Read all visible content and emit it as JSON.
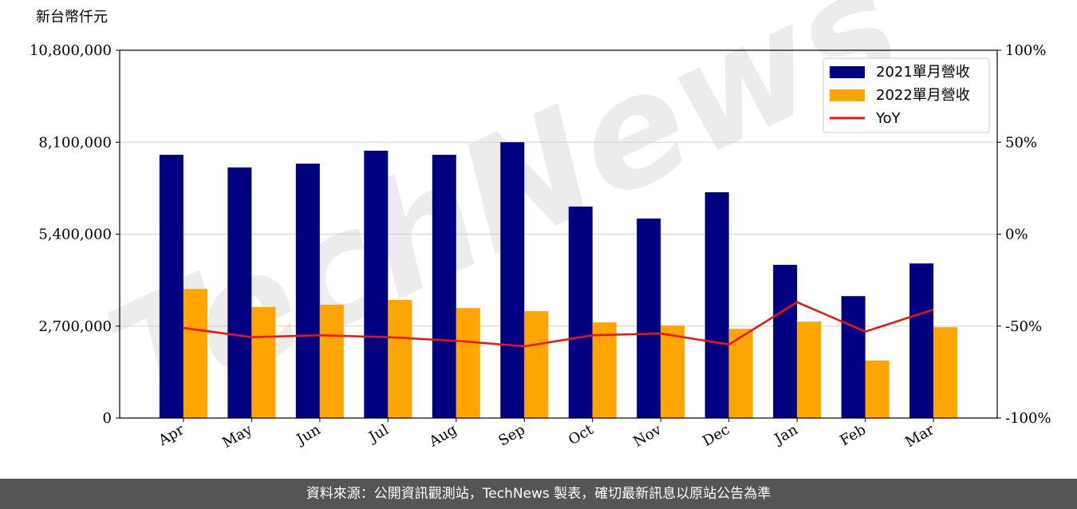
{
  "chart_data": {
    "type": "bar",
    "y_label": "新台幣仟元",
    "watermark": "TechNews",
    "categories": [
      "Apr",
      "May",
      "Jun",
      "Jul",
      "Aug",
      "Sep",
      "Oct",
      "Nov",
      "Dec",
      "Jan",
      "Feb",
      "Mar"
    ],
    "series": [
      {
        "name": "2021單月營收",
        "color": "#000080",
        "type": "bar",
        "values": [
          7730000,
          7360000,
          7470000,
          7850000,
          7730000,
          8100000,
          6210000,
          5860000,
          6630000,
          4500000,
          3580000,
          4540000
        ]
      },
      {
        "name": "2022單月營收",
        "color": "#ffa500",
        "type": "bar",
        "values": [
          3790000,
          3260000,
          3330000,
          3470000,
          3230000,
          3140000,
          2810000,
          2720000,
          2620000,
          2830000,
          1690000,
          2670000
        ]
      },
      {
        "name": "YoY",
        "color": "#ee1111",
        "type": "line",
        "axis": "y2",
        "values": [
          -51,
          -56,
          -55,
          -56,
          -58,
          -61,
          -55,
          -54,
          -60,
          -37,
          -53,
          -41
        ]
      }
    ],
    "ylim": [
      0,
      10800000
    ],
    "yticks": [
      {
        "value": 0,
        "label": "0"
      },
      {
        "value": 2700000,
        "label": "2,700,000"
      },
      {
        "value": 5400000,
        "label": "5,400,000"
      },
      {
        "value": 8100000,
        "label": "8,100,000"
      },
      {
        "value": 10800000,
        "label": "10,800,000"
      }
    ],
    "y2lim": [
      -100,
      100
    ],
    "y2ticks": [
      {
        "value": -100,
        "label": "-100%"
      },
      {
        "value": -50,
        "label": "-50%"
      },
      {
        "value": 0,
        "label": "0%"
      },
      {
        "value": 50,
        "label": "50%"
      },
      {
        "value": 100,
        "label": "100%"
      }
    ],
    "grid": true,
    "legend": "upper right"
  },
  "footer": "資料來源：公開資訊觀測站，TechNews 製表，確切最新訊息以原站公告為準"
}
